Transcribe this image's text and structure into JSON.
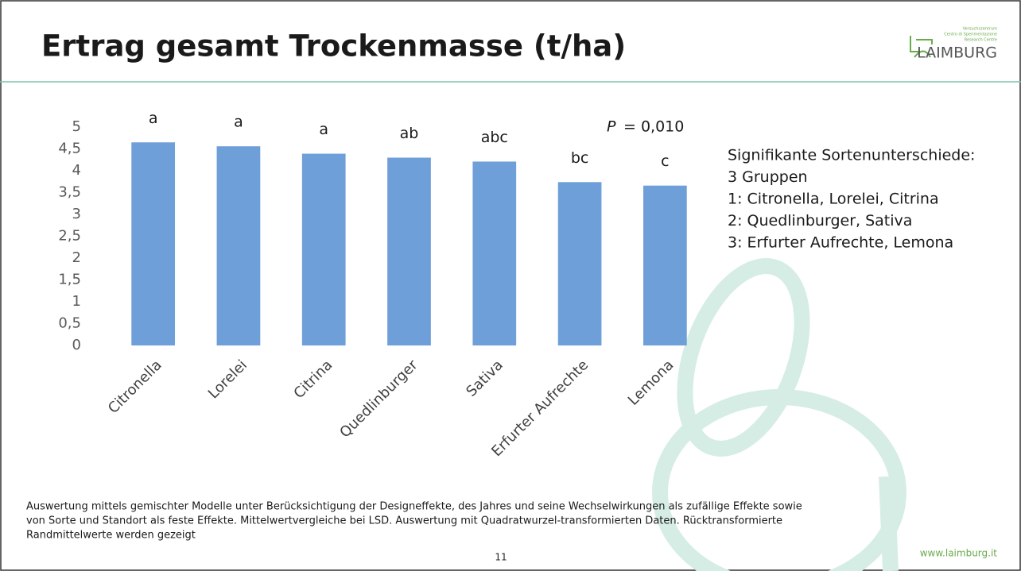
{
  "header": {
    "title": "Ertrag gesamt Trockenmasse (t/ha)",
    "logo": {
      "name": "LAIMBURG",
      "lines": [
        "Versuchszentrum",
        "Centro di Sperimentazione",
        "Research Centre"
      ]
    }
  },
  "chart_data": {
    "type": "bar",
    "categories": [
      "Citronella",
      "Lorelei",
      "Citrina",
      "Quedlinburger",
      "Sativa",
      "Erfurter Aufrechte",
      "Lemona"
    ],
    "values": [
      4.65,
      4.56,
      4.39,
      4.3,
      4.21,
      3.74,
      3.66
    ],
    "group_letters": [
      "a",
      "a",
      "a",
      "ab",
      "abc",
      "bc",
      "c"
    ],
    "color": "#6f9fd8",
    "ylim": [
      0,
      5
    ],
    "yticks": [
      0,
      {
        "value": 0.5,
        "label": "0,5"
      },
      1,
      {
        "value": 1.5,
        "label": "1,5"
      },
      2,
      {
        "value": 2.5,
        "label": "2,5"
      },
      3,
      {
        "value": 3.5,
        "label": "3,5"
      },
      4,
      {
        "value": 4.5,
        "label": "4,5"
      },
      5
    ],
    "grid": false,
    "p_symbol": "P",
    "p_text": "= 0,010"
  },
  "side_text": [
    "Signifikante Sortenunterschiede:",
    "3 Gruppen",
    "1: Citronella, Lorelei, Citrina",
    "2: Quedlinburger, Sativa",
    "3: Erfurter Aufrechte, Lemona"
  ],
  "footer": {
    "note": [
      "Auswertung mittels gemischter Modelle unter Berücksichtigung der Designeffekte, des Jahres und seine Wechselwirkungen als zufällige Effekte sowie",
      "von Sorte und Standort als feste Effekte. Mittelwertvergleiche bei LSD. Auswertung mit Quadratwurzel-transformierten Daten. Rücktransformierte",
      "Randmittelwerte werden gezeigt"
    ],
    "page": "11",
    "url": "www.laimburg.it"
  }
}
